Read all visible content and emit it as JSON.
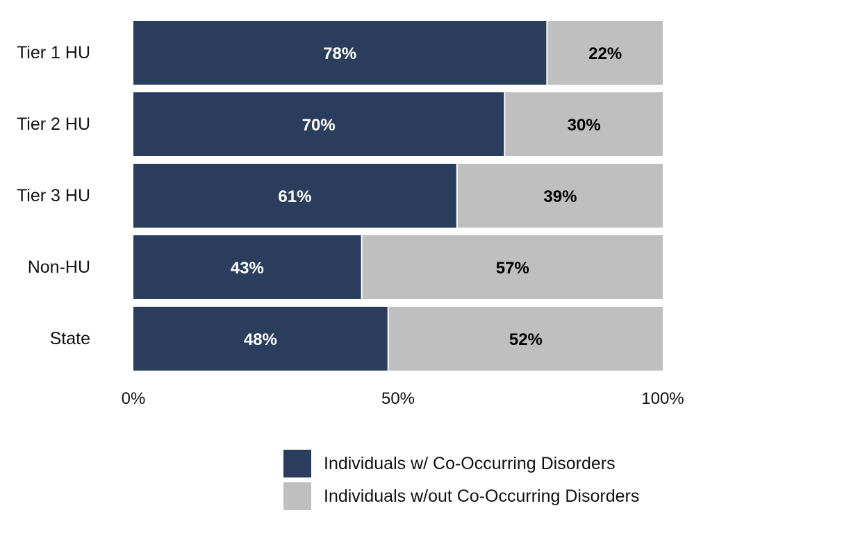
{
  "chart_data": {
    "type": "bar",
    "orientation": "horizontal",
    "stacked": true,
    "categories": [
      "Tier 1 HU",
      "Tier 2 HU",
      "Tier 3 HU",
      "Non-HU",
      "State"
    ],
    "series": [
      {
        "name": "Individuals w/ Co-Occurring Disorders",
        "color": "#2b3d5c",
        "label_color": "#ffffff",
        "values": [
          78,
          70,
          61,
          43,
          48
        ],
        "labels": [
          "78%",
          "70%",
          "61%",
          "43%",
          "48%"
        ]
      },
      {
        "name": "Individuals w/out Co-Occurring Disorders",
        "color": "#bfbfbf",
        "label_color": "#000000",
        "values": [
          22,
          30,
          39,
          57,
          52
        ],
        "labels": [
          "22%",
          "30%",
          "39%",
          "57%",
          "52%"
        ]
      }
    ],
    "xlim": [
      0,
      100
    ],
    "xticks": [
      0,
      50,
      100
    ],
    "xtick_labels": [
      "0%",
      "50%",
      "100%"
    ],
    "grid": false,
    "legend_position": "bottom"
  }
}
